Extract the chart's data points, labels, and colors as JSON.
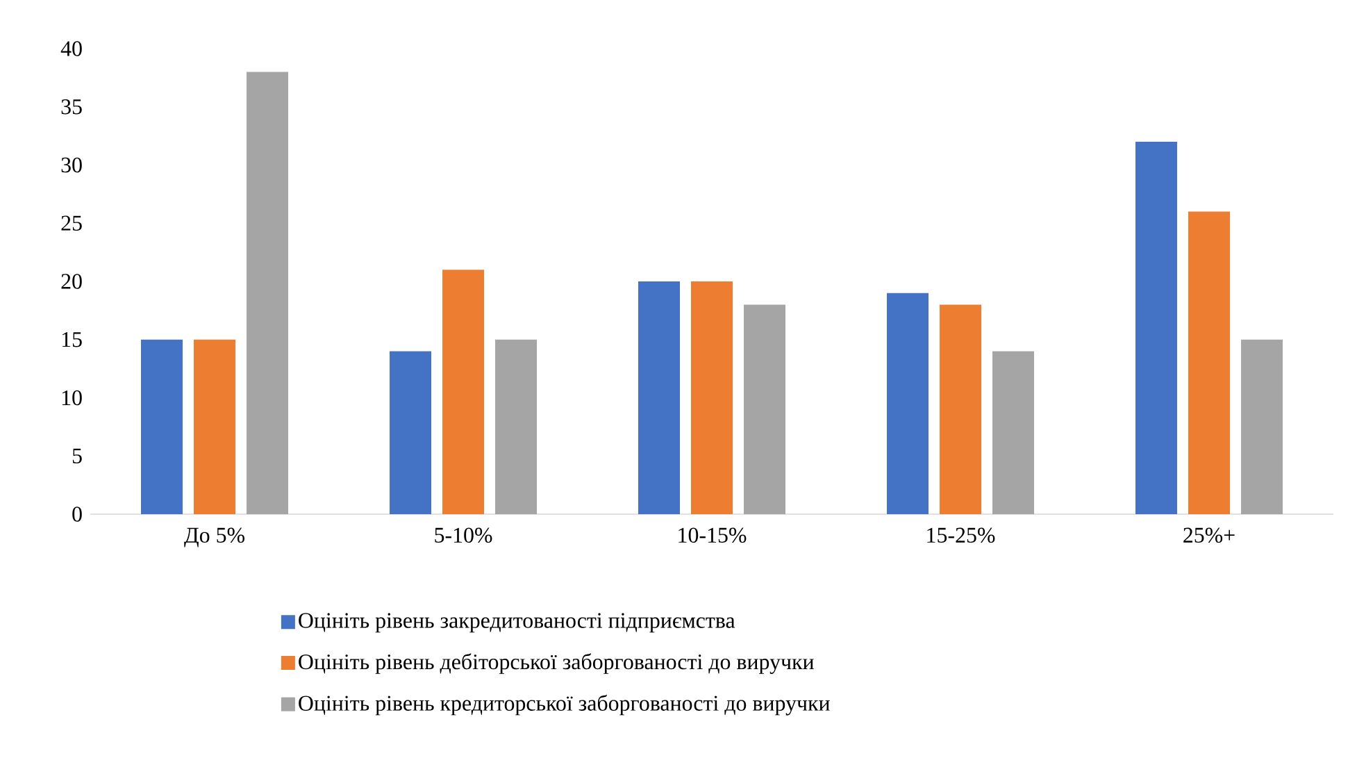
{
  "chart_data": {
    "type": "bar",
    "categories": [
      "До 5%",
      "5-10%",
      "10-15%",
      "15-25%",
      "25%+"
    ],
    "series": [
      {
        "name": "Оцініть рівень закредитованості підприємства",
        "color": "#4472c4",
        "values": [
          15,
          14,
          20,
          19,
          32
        ]
      },
      {
        "name": "Оцініть рівень дебіторської заборгованості до виручки",
        "color": "#ed7d31",
        "values": [
          15,
          21,
          20,
          18,
          26
        ]
      },
      {
        "name": "Оцініть рівень кредиторської заборгованості до виручки",
        "color": "#a5a5a5",
        "values": [
          38,
          15,
          18,
          14,
          15
        ]
      }
    ],
    "ylim": [
      0,
      40
    ],
    "yticks": [
      0,
      5,
      10,
      15,
      20,
      25,
      30,
      35,
      40
    ],
    "grid": false,
    "legend": "bottom"
  }
}
